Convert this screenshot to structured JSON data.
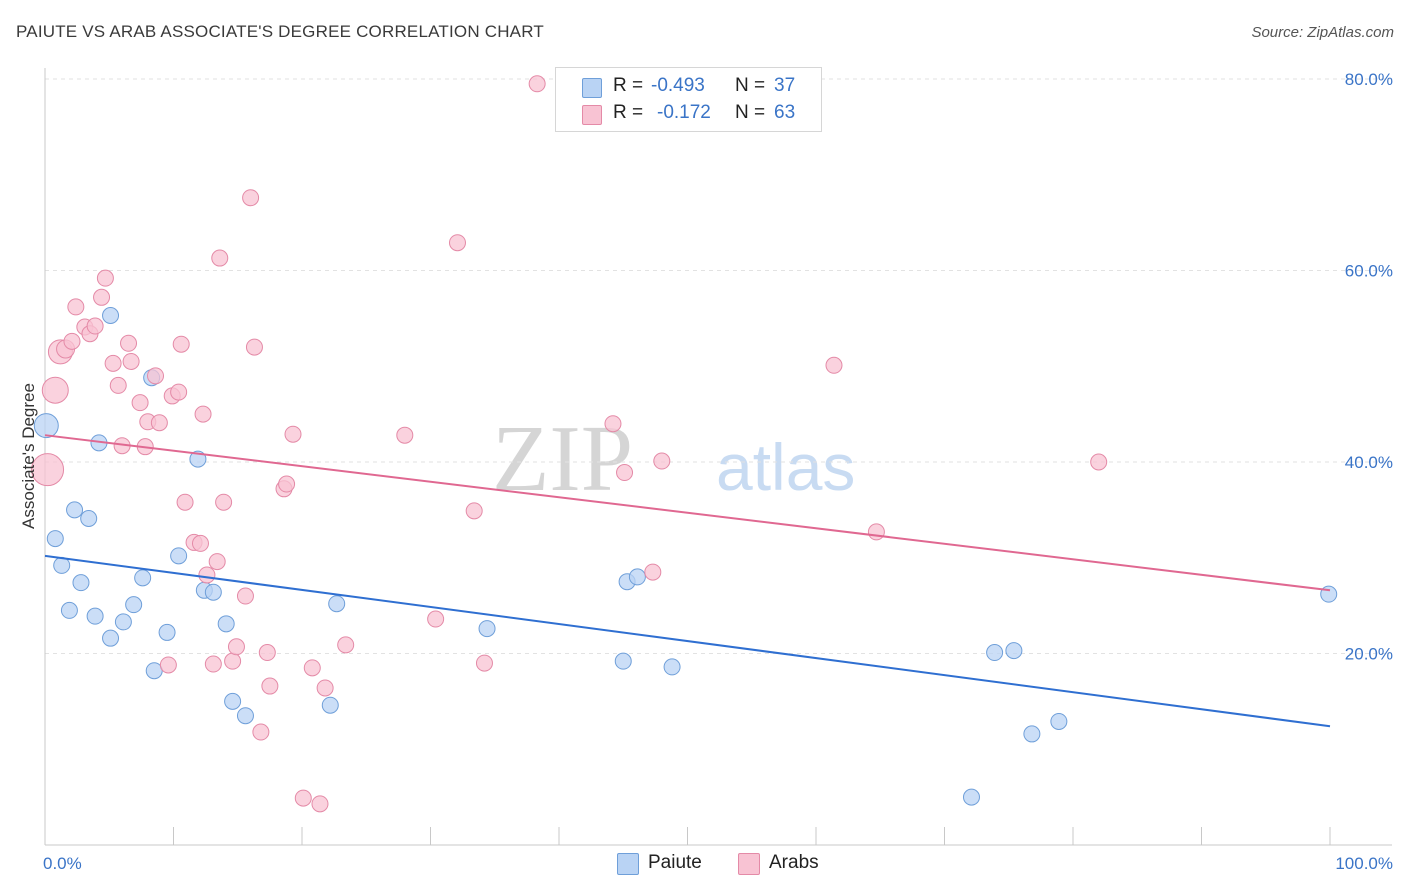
{
  "title": "PAIUTE VS ARAB ASSOCIATE'S DEGREE CORRELATION CHART",
  "source": "Source: ZipAtlas.com",
  "watermark": {
    "zip": "ZIP",
    "atlas": "atlas"
  },
  "legend": {
    "r_label": "R =",
    "n_label": "N =",
    "rows": [
      {
        "r": "-0.493",
        "n": "37",
        "fill": "#b9d3f4",
        "stroke": "#6f9fd9"
      },
      {
        "r": "-0.172",
        "n": "63",
        "fill": "#f8c3d3",
        "stroke": "#e48aa7"
      }
    ]
  },
  "chart_data": {
    "type": "scatter",
    "xlabel": "",
    "ylabel": "Associate's Degree",
    "xlim": [
      0,
      100
    ],
    "ylim": [
      0,
      80
    ],
    "x_tick_labels": [
      "0.0%",
      "100.0%"
    ],
    "y_ticks": [
      20,
      40,
      60,
      80
    ],
    "y_tick_labels": [
      "20.0%",
      "40.0%",
      "60.0%",
      "80.0%"
    ],
    "grid": true,
    "legend_position": "top-center",
    "colors": {
      "blue": "#2f6fd1",
      "pink": "#e06891",
      "axis_text": "#3a74c7"
    },
    "series": [
      {
        "name": "Paiute",
        "point_fill": "#b9d3f4",
        "point_stroke": "#6f9fd9",
        "line_color": "#2f6fd1",
        "trend": [
          [
            0,
            30.2
          ],
          [
            100,
            12.4
          ]
        ],
        "points": [
          [
            0.1,
            43.8,
            12
          ],
          [
            0.8,
            32.0,
            8
          ],
          [
            1.3,
            29.2,
            8
          ],
          [
            1.9,
            24.5,
            8
          ],
          [
            2.3,
            35.0,
            8
          ],
          [
            2.8,
            27.4,
            8
          ],
          [
            3.4,
            34.1,
            8
          ],
          [
            3.9,
            23.9,
            8
          ],
          [
            4.2,
            42.0,
            8
          ],
          [
            5.1,
            21.6,
            8
          ],
          [
            5.1,
            55.3,
            8
          ],
          [
            6.1,
            23.3,
            8
          ],
          [
            6.9,
            25.1,
            8
          ],
          [
            7.6,
            27.9,
            8
          ],
          [
            8.3,
            48.8,
            8
          ],
          [
            8.5,
            18.2,
            8
          ],
          [
            9.5,
            22.2,
            8
          ],
          [
            10.4,
            30.2,
            8
          ],
          [
            11.9,
            40.3,
            8
          ],
          [
            12.4,
            26.6,
            8
          ],
          [
            13.1,
            26.4,
            8
          ],
          [
            14.1,
            23.1,
            8
          ],
          [
            14.6,
            15.0,
            8
          ],
          [
            15.6,
            13.5,
            8
          ],
          [
            22.2,
            14.6,
            8
          ],
          [
            22.7,
            25.2,
            8
          ],
          [
            34.4,
            22.6,
            8
          ],
          [
            45.0,
            19.2,
            8
          ],
          [
            45.3,
            27.5,
            8
          ],
          [
            46.1,
            28.0,
            8
          ],
          [
            48.8,
            18.6,
            8
          ],
          [
            72.1,
            5.0,
            8
          ],
          [
            73.9,
            20.1,
            8
          ],
          [
            75.4,
            20.3,
            8
          ],
          [
            76.8,
            11.6,
            8
          ],
          [
            78.9,
            12.9,
            8
          ],
          [
            99.9,
            26.2,
            8
          ]
        ]
      },
      {
        "name": "Arabs",
        "point_fill": "#f8c3d3",
        "point_stroke": "#e48aa7",
        "line_color": "#e06891",
        "trend": [
          [
            0,
            42.8
          ],
          [
            100,
            26.6
          ]
        ],
        "points": [
          [
            0.2,
            39.2,
            16
          ],
          [
            0.8,
            47.5,
            13
          ],
          [
            1.2,
            51.5,
            12
          ],
          [
            1.6,
            51.8,
            9
          ],
          [
            2.1,
            52.6,
            8
          ],
          [
            2.4,
            56.2,
            8
          ],
          [
            3.1,
            54.1,
            8
          ],
          [
            3.5,
            53.4,
            8
          ],
          [
            3.9,
            54.2,
            8
          ],
          [
            4.4,
            57.2,
            8
          ],
          [
            4.7,
            59.2,
            8
          ],
          [
            5.3,
            50.3,
            8
          ],
          [
            5.7,
            48.0,
            8
          ],
          [
            6.0,
            41.7,
            8
          ],
          [
            6.5,
            52.4,
            8
          ],
          [
            6.7,
            50.5,
            8
          ],
          [
            7.4,
            46.2,
            8
          ],
          [
            7.8,
            41.6,
            8
          ],
          [
            8.0,
            44.2,
            8
          ],
          [
            8.6,
            49.0,
            8
          ],
          [
            8.9,
            44.1,
            8
          ],
          [
            9.6,
            18.8,
            8
          ],
          [
            9.9,
            46.9,
            8
          ],
          [
            10.4,
            47.3,
            8
          ],
          [
            10.6,
            52.3,
            8
          ],
          [
            10.9,
            35.8,
            8
          ],
          [
            11.6,
            31.6,
            8
          ],
          [
            12.1,
            31.5,
            8
          ],
          [
            12.3,
            45.0,
            8
          ],
          [
            12.6,
            28.2,
            8
          ],
          [
            13.1,
            18.9,
            8
          ],
          [
            13.4,
            29.6,
            8
          ],
          [
            13.6,
            61.3,
            8
          ],
          [
            13.9,
            35.8,
            8
          ],
          [
            14.6,
            19.2,
            8
          ],
          [
            14.9,
            20.7,
            8
          ],
          [
            15.6,
            26.0,
            8
          ],
          [
            16.0,
            67.6,
            8
          ],
          [
            16.3,
            52.0,
            8
          ],
          [
            16.8,
            11.8,
            8
          ],
          [
            17.3,
            20.1,
            8
          ],
          [
            17.5,
            16.6,
            8
          ],
          [
            18.6,
            37.2,
            8
          ],
          [
            18.8,
            37.7,
            8
          ],
          [
            19.3,
            42.9,
            8
          ],
          [
            20.1,
            4.9,
            8
          ],
          [
            20.8,
            18.5,
            8
          ],
          [
            21.4,
            4.3,
            8
          ],
          [
            21.8,
            16.4,
            8
          ],
          [
            23.4,
            20.9,
            8
          ],
          [
            28.0,
            42.8,
            8
          ],
          [
            30.4,
            23.6,
            8
          ],
          [
            32.1,
            62.9,
            8
          ],
          [
            33.4,
            34.9,
            8
          ],
          [
            34.2,
            19.0,
            8
          ],
          [
            38.3,
            79.5,
            8
          ],
          [
            44.2,
            44.0,
            8
          ],
          [
            45.1,
            38.9,
            8
          ],
          [
            47.3,
            28.5,
            8
          ],
          [
            48.0,
            40.1,
            8
          ],
          [
            61.4,
            50.1,
            8
          ],
          [
            64.7,
            32.7,
            8
          ],
          [
            82.0,
            40.0,
            8
          ]
        ]
      }
    ]
  }
}
